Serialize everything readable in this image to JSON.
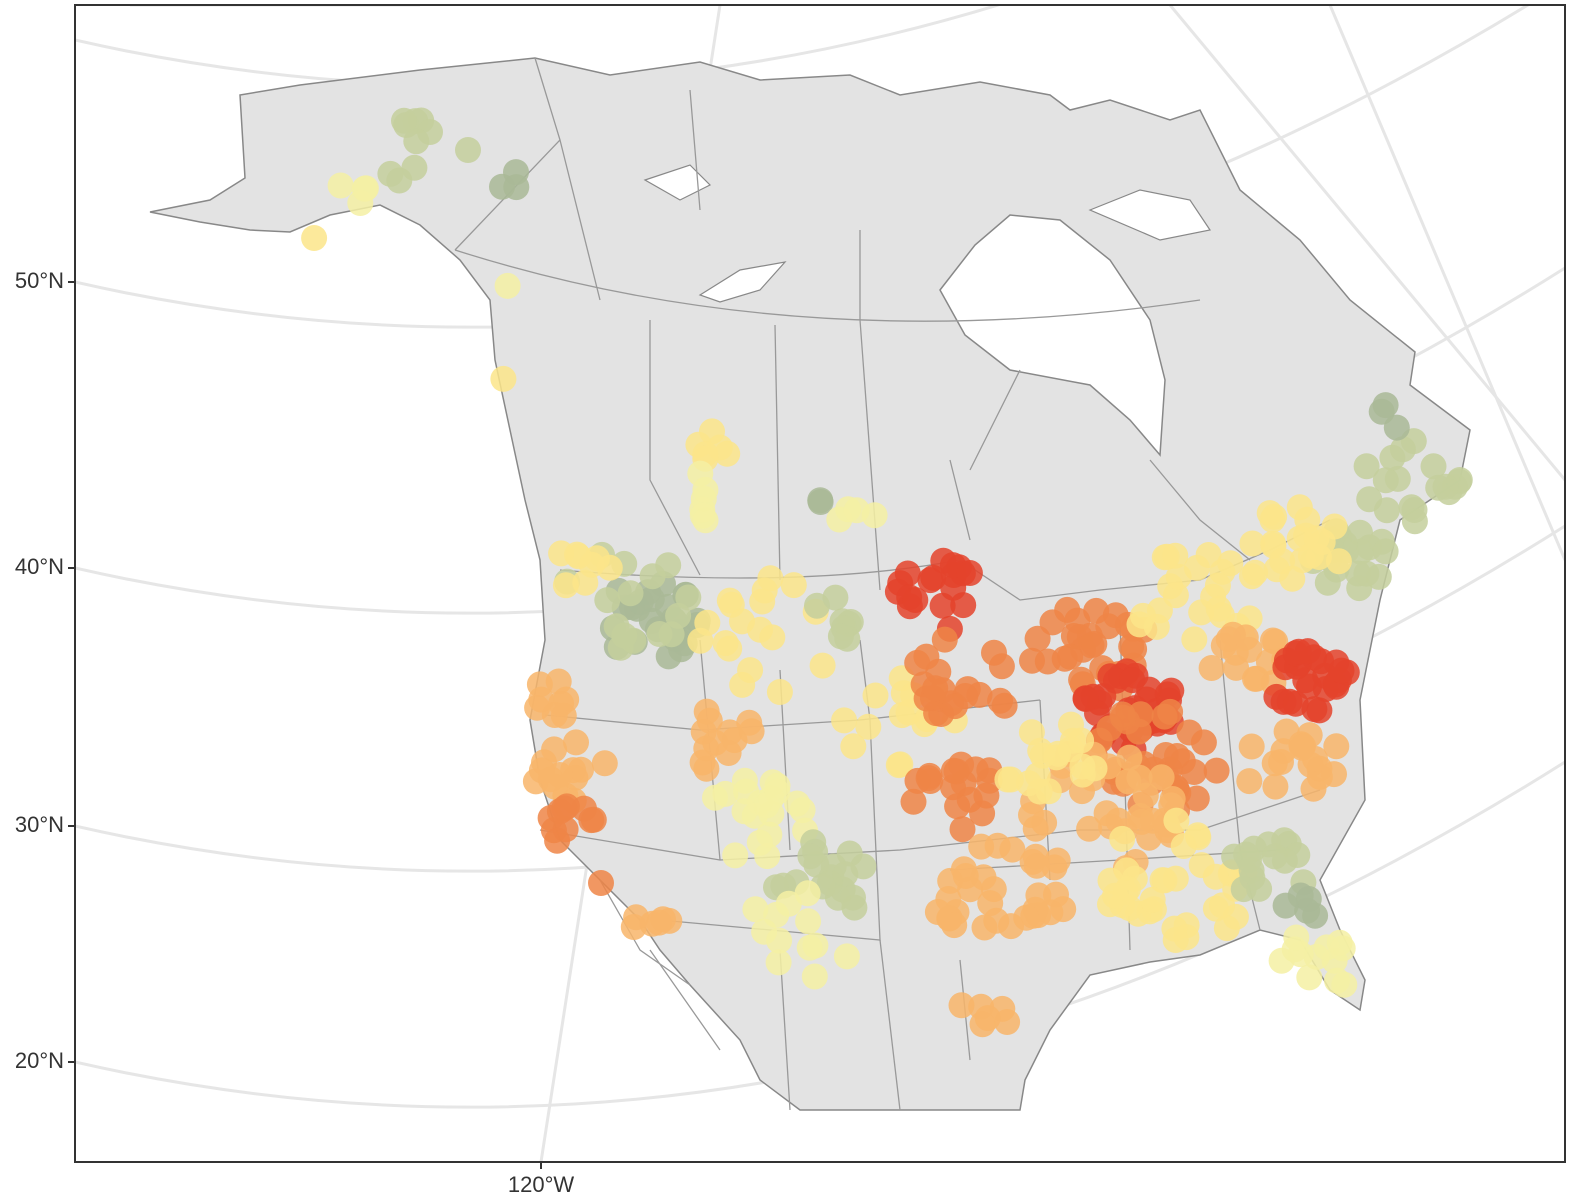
{
  "map": {
    "y_axis_labels": [
      "50°N",
      "40°N",
      "30°N",
      "20°N"
    ],
    "x_axis_labels": [
      "120°W"
    ]
  }
}
